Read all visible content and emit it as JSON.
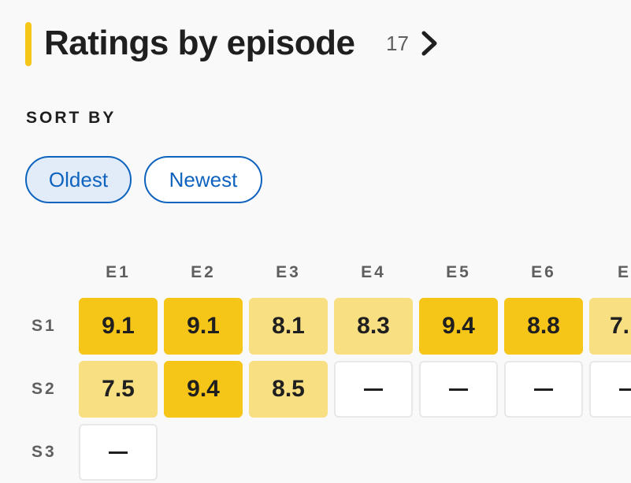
{
  "header": {
    "title": "Ratings by episode",
    "count": "17",
    "accent_color": "#f5c518",
    "chevron_icon": "chevron-right-icon"
  },
  "sort": {
    "label": "SORT BY",
    "options": [
      "Oldest",
      "Newest"
    ],
    "selected": "Oldest"
  },
  "grid": {
    "columns": [
      "E1",
      "E2",
      "E3",
      "E4",
      "E5",
      "E6",
      "E"
    ],
    "rows": [
      {
        "label": "S1",
        "cells": [
          "9.1",
          "9.1",
          "8.1",
          "8.3",
          "9.4",
          "8.8",
          "7."
        ]
      },
      {
        "label": "S2",
        "cells": [
          "7.5",
          "9.4",
          "8.5",
          "—",
          "—",
          "—",
          "—"
        ]
      },
      {
        "label": "S3",
        "cells": [
          "—"
        ]
      }
    ],
    "colors": {
      "high": "#f5c518",
      "mid": "#f8df82",
      "empty": "#ffffff"
    }
  }
}
